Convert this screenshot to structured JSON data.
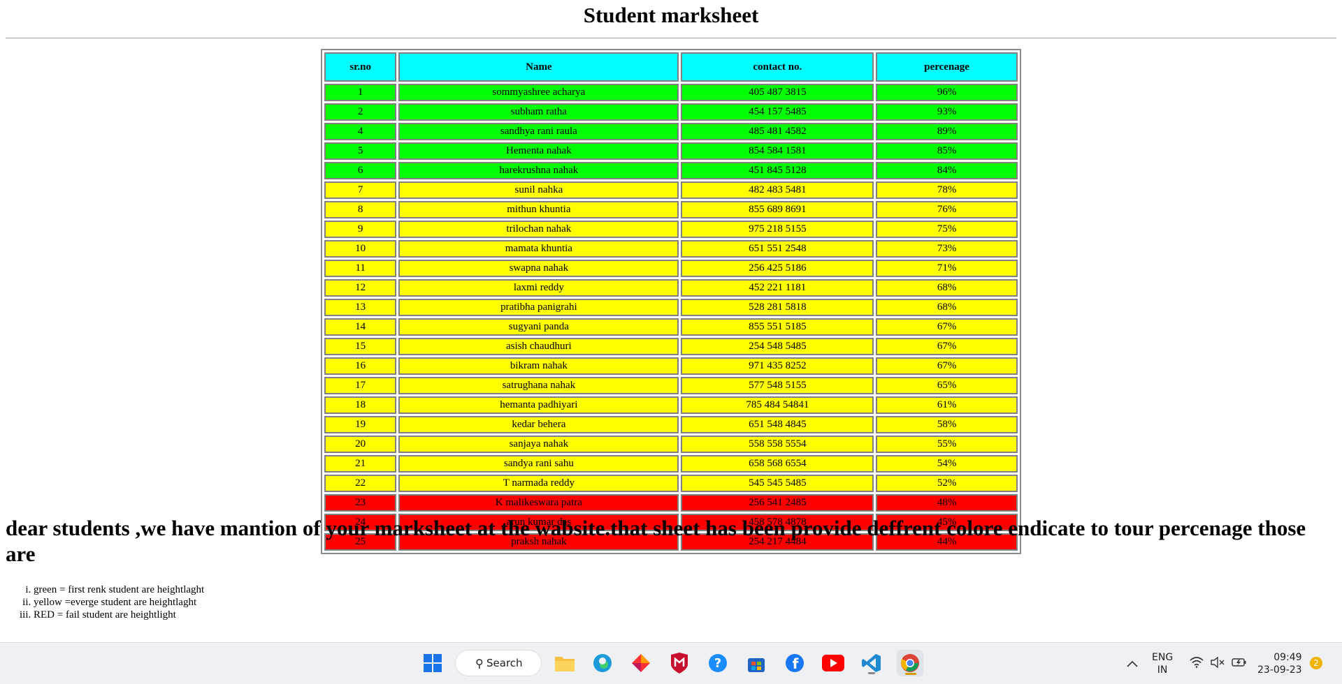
{
  "page": {
    "title": "Student marksheet",
    "columns": [
      "sr.no",
      "Name",
      "contact no.",
      "percenage"
    ],
    "rows": [
      {
        "sr": "1",
        "name": "sommyashree acharya",
        "contact": "405 487 3815",
        "pct": "96%",
        "status": "green"
      },
      {
        "sr": "2",
        "name": "subham ratha",
        "contact": "454 157 5485",
        "pct": "93%",
        "status": "green"
      },
      {
        "sr": "4",
        "name": "sandhya rani raula",
        "contact": "485 481 4582",
        "pct": "89%",
        "status": "green"
      },
      {
        "sr": "5",
        "name": "Hementa nahak",
        "contact": "854 584 1581",
        "pct": "85%",
        "status": "green"
      },
      {
        "sr": "6",
        "name": "harekrushna nahak",
        "contact": "451 845 5128",
        "pct": "84%",
        "status": "green"
      },
      {
        "sr": "7",
        "name": "sunil nahka",
        "contact": "482 483 5481",
        "pct": "78%",
        "status": "yellow"
      },
      {
        "sr": "8",
        "name": "mithun khuntia",
        "contact": "855 689 8691",
        "pct": "76%",
        "status": "yellow"
      },
      {
        "sr": "9",
        "name": "trilochan nahak",
        "contact": "975 218 5155",
        "pct": "75%",
        "status": "yellow"
      },
      {
        "sr": "10",
        "name": "mamata khuntia",
        "contact": "651 551 2548",
        "pct": "73%",
        "status": "yellow"
      },
      {
        "sr": "11",
        "name": "swapna nahak",
        "contact": "256 425 5186",
        "pct": "71%",
        "status": "yellow"
      },
      {
        "sr": "12",
        "name": "laxmi reddy",
        "contact": "452 221 1181",
        "pct": "68%",
        "status": "yellow"
      },
      {
        "sr": "13",
        "name": "pratibha panigrahi",
        "contact": "528 281 5818",
        "pct": "68%",
        "status": "yellow"
      },
      {
        "sr": "14",
        "name": "sugyani panda",
        "contact": "855 551 5185",
        "pct": "67%",
        "status": "yellow"
      },
      {
        "sr": "15",
        "name": "asish chaudhuri",
        "contact": "254 548 5485",
        "pct": "67%",
        "status": "yellow"
      },
      {
        "sr": "16",
        "name": "bikram nahak",
        "contact": "971 435 8252",
        "pct": "67%",
        "status": "yellow"
      },
      {
        "sr": "17",
        "name": "satrughana nahak",
        "contact": "577 548 5155",
        "pct": "65%",
        "status": "yellow"
      },
      {
        "sr": "18",
        "name": "hemanta padhiyari",
        "contact": "785 484 54841",
        "pct": "61%",
        "status": "yellow"
      },
      {
        "sr": "19",
        "name": "kedar behera",
        "contact": "651 548 4845",
        "pct": "58%",
        "status": "yellow"
      },
      {
        "sr": "20",
        "name": "sanjaya nahak",
        "contact": "558 558 5554",
        "pct": "55%",
        "status": "yellow"
      },
      {
        "sr": "21",
        "name": "sandya rani sahu",
        "contact": "658 568 6554",
        "pct": "54%",
        "status": "yellow"
      },
      {
        "sr": "22",
        "name": "T narmada reddy",
        "contact": "545 545 5485",
        "pct": "52%",
        "status": "yellow"
      },
      {
        "sr": "23",
        "name": "K malikeswara patra",
        "contact": "256 541 2485",
        "pct": "48%",
        "status": "red"
      },
      {
        "sr": "24",
        "name": "arun kumar das",
        "contact": "458 578 4878",
        "pct": "45%",
        "status": "red"
      },
      {
        "sr": "25",
        "name": "praksh nahak",
        "contact": "254 217 4484",
        "pct": "44%",
        "status": "red"
      }
    ],
    "notice": "dear students ,we have mantion of your marksheet at the wabsite.that sheet has been provide deffrent colore endicate to tour percenage those are",
    "legend": [
      "green = first renk student are heightlaght",
      "yellow =everge student are heightlaght",
      "RED = fail student are heightlight"
    ],
    "colors": {
      "header": "#00ffff",
      "green": "#00ff00",
      "yellow": "#ffff00",
      "red": "#ff0000"
    }
  },
  "taskbar": {
    "search_label": "Search",
    "apps": [
      "windows-start-icon",
      "file-explorer-icon",
      "edge-icon",
      "app-diamond-icon",
      "mcafee-icon",
      "help-icon",
      "store-icon",
      "facebook-icon",
      "youtube-icon",
      "vscode-icon",
      "chrome-icon"
    ],
    "lang_top": "ENG",
    "lang_bottom": "IN",
    "time": "09:49",
    "date": "23-09-23",
    "notification_count": "2"
  }
}
